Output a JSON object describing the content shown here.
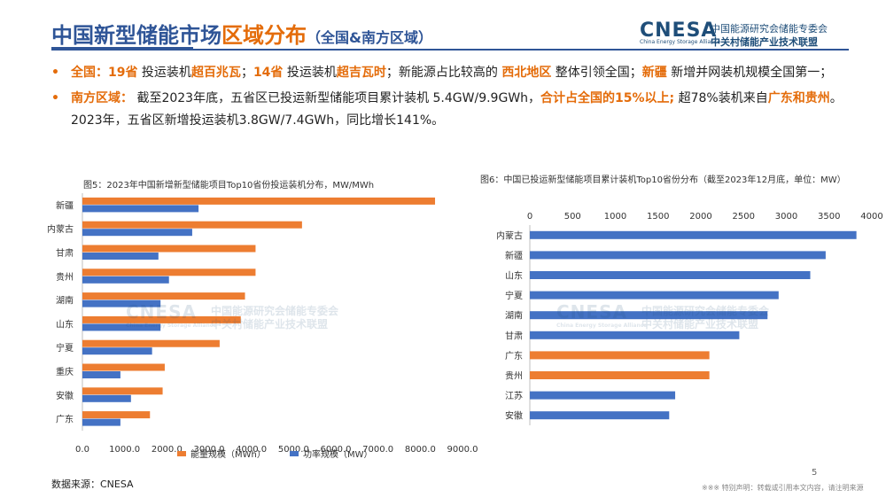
{
  "header": {
    "title_part1": "中国新型储能市场",
    "title_part2": "区域分布",
    "title_sub": "（全国&南方区域）"
  },
  "logo": {
    "mark": "CNESA",
    "en": "China Energy Storage Alliance",
    "cn_line1": "中国能源研究会储能专委会",
    "cn_line2": "中关村储能产业技术联盟"
  },
  "bullets": {
    "b1": {
      "s1": "全国：",
      "s2": "19省",
      "s3": " 投运装机",
      "s4": "超百兆瓦",
      "s5": "；",
      "s6": "14省",
      "s7": " 投运装机",
      "s8": "超吉瓦时",
      "s9": "；新能源占比较高的 ",
      "s10": "西北地区",
      "s11": " 整体引领全国；",
      "s12": "新疆",
      "s13": " 新增并网装机规模全国第一；"
    },
    "b2": {
      "s1": "南方区域：",
      "s2": " 截至2023年底，五省区已投运新型储能项目累计装机 5.4GW/9.9GWh，",
      "s3": "合计占全国的15%以上;",
      "s4": " 超78%装机来自",
      "s5": "广东和贵州",
      "s6": "。2023年，五省区新增投运装机3.8GW/7.4GWh，同比增长141%。"
    }
  },
  "watermark": {
    "mark": "CNESA",
    "cn1": "中国能源研究会储能专委会",
    "cn2": "中关村储能产业技术联盟",
    "en": "China Energy Storage Alliance"
  },
  "colors": {
    "orange": "#ED7D31",
    "blue": "#4472C4",
    "title": "#2F5597",
    "accent": "#E46C0A"
  },
  "chart_data": [
    {
      "type": "bar",
      "orientation": "horizontal",
      "title": "图5：2023年中国新增新型储能项目Top10省份投运装机分布，MW/MWh",
      "categories": [
        "新疆",
        "内蒙古",
        "甘肃",
        "贵州",
        "湖南",
        "山东",
        "宁夏",
        "重庆",
        "安徽",
        "广东"
      ],
      "series": [
        {
          "name": "能量规模（MWh）",
          "color": "#ED7D31",
          "values": [
            8350,
            5200,
            4100,
            4100,
            3850,
            3750,
            3250,
            1950,
            1900,
            1600
          ]
        },
        {
          "name": "功率规模（MW）",
          "color": "#4472C4",
          "values": [
            2750,
            2600,
            1800,
            2050,
            1850,
            1850,
            1650,
            900,
            1150,
            900
          ]
        }
      ],
      "xlim": [
        0,
        9000
      ],
      "xticks": [
        "0.0",
        "1000.0",
        "2000.0",
        "3000.0",
        "4000.0",
        "5000.0",
        "6000.0",
        "7000.0",
        "8000.0",
        "9000.0"
      ],
      "legend": "bottom"
    },
    {
      "type": "bar",
      "orientation": "horizontal",
      "title": "图6：中国已投运新型储能项目累计装机Top10省份分布（截至2023年12月底，单位：MW）",
      "categories": [
        "内蒙古",
        "新疆",
        "山东",
        "宁夏",
        "湖南",
        "甘肃",
        "广东",
        "贵州",
        "江苏",
        "安徽"
      ],
      "values": [
        3820,
        3460,
        3280,
        2910,
        2780,
        2450,
        2100,
        2100,
        1700,
        1630
      ],
      "highlight_color": "#ED7D31",
      "base_color": "#4472C4",
      "highlighted": [
        "广东",
        "贵州"
      ],
      "xlim": [
        0,
        4000
      ],
      "xticks": [
        "0",
        "500",
        "1000",
        "1500",
        "2000",
        "2500",
        "3000",
        "3500",
        "4000"
      ],
      "axis_position": "top"
    }
  ],
  "footer": {
    "source": "数据来源：CNESA",
    "page": "5",
    "disclaimer": "※※※ 特别声明：转载或引用本文内容，请注明来源"
  }
}
